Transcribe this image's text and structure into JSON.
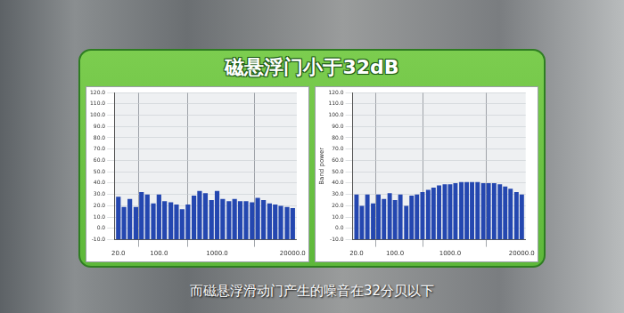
{
  "title": "磁悬浮门小于32dB",
  "caption": "而磁悬浮滑动门产生的噪音在32分贝以下",
  "chart_data": [
    {
      "type": "bar",
      "log": "x",
      "grid": true,
      "color": "#2447b0",
      "x": [
        20,
        25,
        31.5,
        40,
        50,
        63,
        80,
        100,
        125,
        160,
        200,
        250,
        315,
        400,
        500,
        630,
        800,
        1000,
        1250,
        1600,
        2000,
        2500,
        3150,
        4000,
        5000,
        6300,
        8000,
        10000,
        12500,
        16000,
        20000
      ],
      "values": [
        28,
        19,
        26,
        19,
        32,
        30,
        22,
        30,
        24,
        23,
        21,
        17,
        21,
        29,
        33,
        31,
        25,
        33,
        26,
        24,
        26,
        24,
        24,
        23,
        27,
        25,
        22,
        21,
        20,
        19,
        18
      ],
      "xlim": [
        17,
        23500
      ],
      "xticks": [
        {
          "value": 20,
          "label": "20.0"
        },
        {
          "value": 100,
          "label": "100.0"
        },
        {
          "value": 1000,
          "label": "1000.0"
        },
        {
          "value": 20000,
          "label": "20000.0"
        }
      ],
      "ylim": [
        -10,
        120
      ],
      "yticks": [
        {
          "value": -10,
          "label": "-10.0"
        },
        {
          "value": 0,
          "label": "0.0"
        },
        {
          "value": 10,
          "label": "10.0"
        },
        {
          "value": 20,
          "label": "20.0"
        },
        {
          "value": 30,
          "label": "30.0"
        },
        {
          "value": 40,
          "label": "40.0"
        },
        {
          "value": 50,
          "label": "50.0"
        },
        {
          "value": 60,
          "label": "60.0"
        },
        {
          "value": 70,
          "label": "70.0"
        },
        {
          "value": 80,
          "label": "80.0"
        },
        {
          "value": 90,
          "label": "90.0"
        },
        {
          "value": 100,
          "label": "100.0"
        },
        {
          "value": 110,
          "label": "110.0"
        },
        {
          "value": 120,
          "label": "120.0"
        }
      ]
    },
    {
      "type": "bar",
      "log": "x",
      "grid": true,
      "color": "#2447b0",
      "ylabel": "Band power",
      "x": [
        20,
        25,
        31.5,
        40,
        50,
        63,
        80,
        100,
        125,
        160,
        200,
        250,
        315,
        400,
        500,
        630,
        800,
        1000,
        1250,
        1600,
        2000,
        2500,
        3150,
        4000,
        5000,
        6300,
        8000,
        10000,
        12500,
        16000,
        20000
      ],
      "values": [
        30,
        20,
        30,
        22,
        30,
        26,
        31,
        25,
        30,
        20,
        29,
        30,
        32,
        34,
        36,
        38,
        39,
        39,
        40,
        41,
        41,
        41,
        41,
        40,
        40,
        40,
        39,
        37,
        35,
        32,
        30
      ],
      "xlim": [
        17,
        23500
      ],
      "xticks": [
        {
          "value": 20,
          "label": "20.0"
        },
        {
          "value": 100,
          "label": "100.0"
        },
        {
          "value": 1000,
          "label": "1000.0"
        },
        {
          "value": 20000,
          "label": "20000.0"
        }
      ],
      "ylim": [
        -10,
        120
      ],
      "yticks": [
        {
          "value": -10,
          "label": "-10.0"
        },
        {
          "value": 0,
          "label": "0.0"
        },
        {
          "value": 10,
          "label": "10.0"
        },
        {
          "value": 20,
          "label": "20.0"
        },
        {
          "value": 30,
          "label": "30.0"
        },
        {
          "value": 40,
          "label": "40.0"
        },
        {
          "value": 50,
          "label": "50.0"
        },
        {
          "value": 60,
          "label": "60.0"
        },
        {
          "value": 70,
          "label": "70.0"
        },
        {
          "value": 80,
          "label": "80.0"
        },
        {
          "value": 90,
          "label": "90.0"
        },
        {
          "value": 100,
          "label": "100.0"
        },
        {
          "value": 110,
          "label": "110.0"
        },
        {
          "value": 120,
          "label": "120.0"
        }
      ]
    }
  ]
}
